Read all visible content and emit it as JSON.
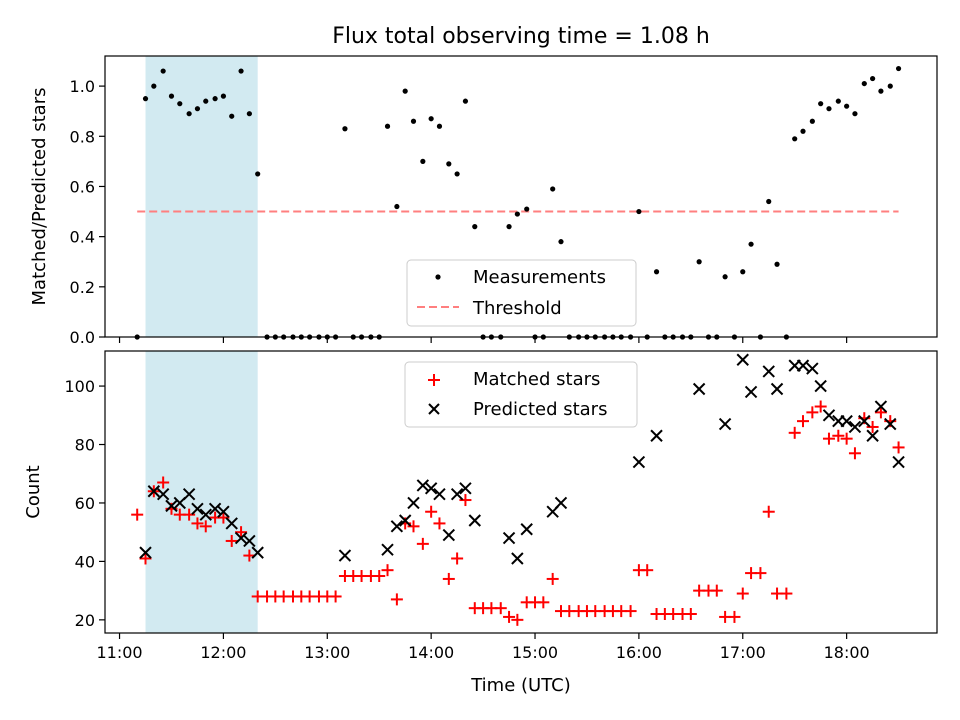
{
  "figure": {
    "title": "Flux total observing time = 1.08 h",
    "xlabel": "Time (UTC)",
    "shaded_interval": {
      "start_hour": 11.25,
      "end_hour": 12.33,
      "color": "#add8e6"
    }
  },
  "chart_data": [
    {
      "type": "scatter",
      "title": "Flux total observing time = 1.08 h",
      "ylabel": "Matched/Predicted stars",
      "xlabel": "",
      "xlim": [
        10.86,
        18.87
      ],
      "ylim": [
        0,
        1.12
      ],
      "yticks": [
        "0.0",
        "0.2",
        "0.4",
        "0.6",
        "0.8",
        "1.0"
      ],
      "ytick_values": [
        0,
        0.2,
        0.4,
        0.6,
        0.8,
        1.0
      ],
      "legend": {
        "location": "lower center",
        "entries": [
          "Measurements",
          "Threshold"
        ]
      },
      "threshold": {
        "label": "Threshold",
        "value": 0.5,
        "x_start": 11.17,
        "x_end": 18.5,
        "color": "#ff7f7f"
      },
      "series": [
        {
          "name": "Measurements",
          "marker": "dot",
          "color": "#000000",
          "points": [
            [
              11.17,
              0
            ],
            [
              11.25,
              0.95
            ],
            [
              11.33,
              1.0
            ],
            [
              11.42,
              1.06
            ],
            [
              11.5,
              0.96
            ],
            [
              11.58,
              0.93
            ],
            [
              11.67,
              0.89
            ],
            [
              11.75,
              0.91
            ],
            [
              11.83,
              0.94
            ],
            [
              11.92,
              0.95
            ],
            [
              12.0,
              0.96
            ],
            [
              12.08,
              0.88
            ],
            [
              12.17,
              1.06
            ],
            [
              12.25,
              0.89
            ],
            [
              12.33,
              0.65
            ],
            [
              12.42,
              0
            ],
            [
              12.5,
              0
            ],
            [
              12.58,
              0
            ],
            [
              12.67,
              0
            ],
            [
              12.75,
              0
            ],
            [
              12.83,
              0
            ],
            [
              12.92,
              0
            ],
            [
              13.0,
              0
            ],
            [
              13.08,
              0
            ],
            [
              13.17,
              0.83
            ],
            [
              13.25,
              0
            ],
            [
              13.33,
              0
            ],
            [
              13.42,
              0
            ],
            [
              13.5,
              0
            ],
            [
              13.58,
              0.84
            ],
            [
              13.67,
              0.52
            ],
            [
              13.75,
              0.98
            ],
            [
              13.83,
              0.86
            ],
            [
              13.92,
              0.7
            ],
            [
              14.0,
              0.87
            ],
            [
              14.08,
              0.84
            ],
            [
              14.17,
              0.69
            ],
            [
              14.25,
              0.65
            ],
            [
              14.33,
              0.94
            ],
            [
              14.42,
              0.44
            ],
            [
              14.5,
              0
            ],
            [
              14.58,
              0
            ],
            [
              14.67,
              0
            ],
            [
              14.75,
              0.44
            ],
            [
              14.83,
              0.49
            ],
            [
              14.92,
              0.51
            ],
            [
              15.0,
              0
            ],
            [
              15.08,
              0
            ],
            [
              15.17,
              0.59
            ],
            [
              15.25,
              0.38
            ],
            [
              15.33,
              0
            ],
            [
              15.42,
              0
            ],
            [
              15.5,
              0
            ],
            [
              15.58,
              0
            ],
            [
              15.67,
              0
            ],
            [
              15.75,
              0
            ],
            [
              15.83,
              0
            ],
            [
              15.92,
              0
            ],
            [
              16.0,
              0.5
            ],
            [
              16.08,
              0
            ],
            [
              16.17,
              0.26
            ],
            [
              16.25,
              0
            ],
            [
              16.33,
              0
            ],
            [
              16.42,
              0
            ],
            [
              16.5,
              0
            ],
            [
              16.58,
              0.3
            ],
            [
              16.67,
              0
            ],
            [
              16.75,
              0
            ],
            [
              16.83,
              0.24
            ],
            [
              16.92,
              0
            ],
            [
              17.0,
              0.26
            ],
            [
              17.08,
              0.37
            ],
            [
              17.17,
              0
            ],
            [
              17.25,
              0.54
            ],
            [
              17.33,
              0.29
            ],
            [
              17.42,
              0
            ],
            [
              17.5,
              0.79
            ],
            [
              17.58,
              0.82
            ],
            [
              17.67,
              0.86
            ],
            [
              17.75,
              0.93
            ],
            [
              17.83,
              0.91
            ],
            [
              17.92,
              0.94
            ],
            [
              18.0,
              0.92
            ],
            [
              18.08,
              0.89
            ],
            [
              18.17,
              1.01
            ],
            [
              18.25,
              1.03
            ],
            [
              18.33,
              0.98
            ],
            [
              18.42,
              1.0
            ],
            [
              18.5,
              1.07
            ]
          ]
        }
      ]
    },
    {
      "type": "scatter",
      "title": "",
      "ylabel": "Count",
      "xlabel": "Time (UTC)",
      "xlim": [
        10.86,
        18.87
      ],
      "ylim": [
        15.5,
        112
      ],
      "yticks": [
        "20",
        "40",
        "60",
        "80",
        "100"
      ],
      "ytick_values": [
        20,
        40,
        60,
        80,
        100
      ],
      "xticks": [
        "11:00",
        "12:00",
        "13:00",
        "14:00",
        "15:00",
        "16:00",
        "17:00",
        "18:00"
      ],
      "xtick_values": [
        11,
        12,
        13,
        14,
        15,
        16,
        17,
        18
      ],
      "legend": {
        "location": "upper center",
        "entries": [
          "Matched stars",
          "Predicted stars"
        ]
      },
      "series": [
        {
          "name": "Matched stars",
          "marker": "plus",
          "color": "#ff0000",
          "points": [
            [
              11.17,
              56
            ],
            [
              11.25,
              41
            ],
            [
              11.33,
              64
            ],
            [
              11.42,
              67
            ],
            [
              11.5,
              58
            ],
            [
              11.58,
              56
            ],
            [
              11.67,
              56
            ],
            [
              11.75,
              53
            ],
            [
              11.83,
              52
            ],
            [
              11.92,
              55
            ],
            [
              12.0,
              55
            ],
            [
              12.08,
              47
            ],
            [
              12.17,
              50
            ],
            [
              12.25,
              42
            ],
            [
              12.33,
              28
            ],
            [
              12.42,
              28
            ],
            [
              12.5,
              28
            ],
            [
              12.58,
              28
            ],
            [
              12.67,
              28
            ],
            [
              12.75,
              28
            ],
            [
              12.83,
              28
            ],
            [
              12.92,
              28
            ],
            [
              13.0,
              28
            ],
            [
              13.08,
              28
            ],
            [
              13.17,
              35
            ],
            [
              13.25,
              35
            ],
            [
              13.33,
              35
            ],
            [
              13.42,
              35
            ],
            [
              13.5,
              35
            ],
            [
              13.58,
              37
            ],
            [
              13.67,
              27
            ],
            [
              13.75,
              53
            ],
            [
              13.83,
              52
            ],
            [
              13.92,
              46
            ],
            [
              14.0,
              57
            ],
            [
              14.08,
              53
            ],
            [
              14.17,
              34
            ],
            [
              14.25,
              41
            ],
            [
              14.33,
              61
            ],
            [
              14.42,
              24
            ],
            [
              14.5,
              24
            ],
            [
              14.58,
              24
            ],
            [
              14.67,
              24
            ],
            [
              14.75,
              21
            ],
            [
              14.83,
              20
            ],
            [
              14.92,
              26
            ],
            [
              15.0,
              26
            ],
            [
              15.08,
              26
            ],
            [
              15.17,
              34
            ],
            [
              15.25,
              23
            ],
            [
              15.33,
              23
            ],
            [
              15.42,
              23
            ],
            [
              15.5,
              23
            ],
            [
              15.58,
              23
            ],
            [
              15.67,
              23
            ],
            [
              15.75,
              23
            ],
            [
              15.83,
              23
            ],
            [
              15.92,
              23
            ],
            [
              16.0,
              37
            ],
            [
              16.08,
              37
            ],
            [
              16.17,
              22
            ],
            [
              16.25,
              22
            ],
            [
              16.33,
              22
            ],
            [
              16.42,
              22
            ],
            [
              16.5,
              22
            ],
            [
              16.58,
              30
            ],
            [
              16.67,
              30
            ],
            [
              16.75,
              30
            ],
            [
              16.83,
              21
            ],
            [
              16.92,
              21
            ],
            [
              17.0,
              29
            ],
            [
              17.08,
              36
            ],
            [
              17.17,
              36
            ],
            [
              17.25,
              57
            ],
            [
              17.33,
              29
            ],
            [
              17.42,
              29
            ],
            [
              17.5,
              84
            ],
            [
              17.58,
              88
            ],
            [
              17.67,
              91
            ],
            [
              17.75,
              93
            ],
            [
              17.83,
              82
            ],
            [
              17.92,
              83
            ],
            [
              18.0,
              82
            ],
            [
              18.08,
              77
            ],
            [
              18.17,
              89
            ],
            [
              18.25,
              86
            ],
            [
              18.33,
              91
            ],
            [
              18.42,
              88
            ],
            [
              18.5,
              79
            ]
          ]
        },
        {
          "name": "Predicted stars",
          "marker": "x",
          "color": "#000000",
          "points": [
            [
              11.25,
              43
            ],
            [
              11.33,
              64
            ],
            [
              11.42,
              63
            ],
            [
              11.5,
              59
            ],
            [
              11.58,
              60
            ],
            [
              11.67,
              63
            ],
            [
              11.75,
              58
            ],
            [
              11.83,
              56
            ],
            [
              11.92,
              58
            ],
            [
              12.0,
              57
            ],
            [
              12.08,
              53
            ],
            [
              12.17,
              48
            ],
            [
              12.25,
              47
            ],
            [
              12.33,
              43
            ],
            [
              13.17,
              42
            ],
            [
              13.58,
              44
            ],
            [
              13.67,
              52
            ],
            [
              13.75,
              54
            ],
            [
              13.83,
              60
            ],
            [
              13.92,
              66
            ],
            [
              14.0,
              65
            ],
            [
              14.08,
              63
            ],
            [
              14.17,
              49
            ],
            [
              14.25,
              63
            ],
            [
              14.33,
              65
            ],
            [
              14.42,
              54
            ],
            [
              14.75,
              48
            ],
            [
              14.83,
              41
            ],
            [
              14.92,
              51
            ],
            [
              15.17,
              57
            ],
            [
              15.25,
              60
            ],
            [
              16.0,
              74
            ],
            [
              16.17,
              83
            ],
            [
              16.58,
              99
            ],
            [
              16.83,
              87
            ],
            [
              17.0,
              109
            ],
            [
              17.08,
              98
            ],
            [
              17.25,
              105
            ],
            [
              17.33,
              99
            ],
            [
              17.5,
              107
            ],
            [
              17.58,
              107
            ],
            [
              17.67,
              106
            ],
            [
              17.75,
              100
            ],
            [
              17.83,
              90
            ],
            [
              17.92,
              88
            ],
            [
              18.0,
              88
            ],
            [
              18.08,
              86
            ],
            [
              18.17,
              88
            ],
            [
              18.25,
              83
            ],
            [
              18.33,
              93
            ],
            [
              18.42,
              87
            ],
            [
              18.5,
              74
            ]
          ]
        }
      ]
    }
  ]
}
